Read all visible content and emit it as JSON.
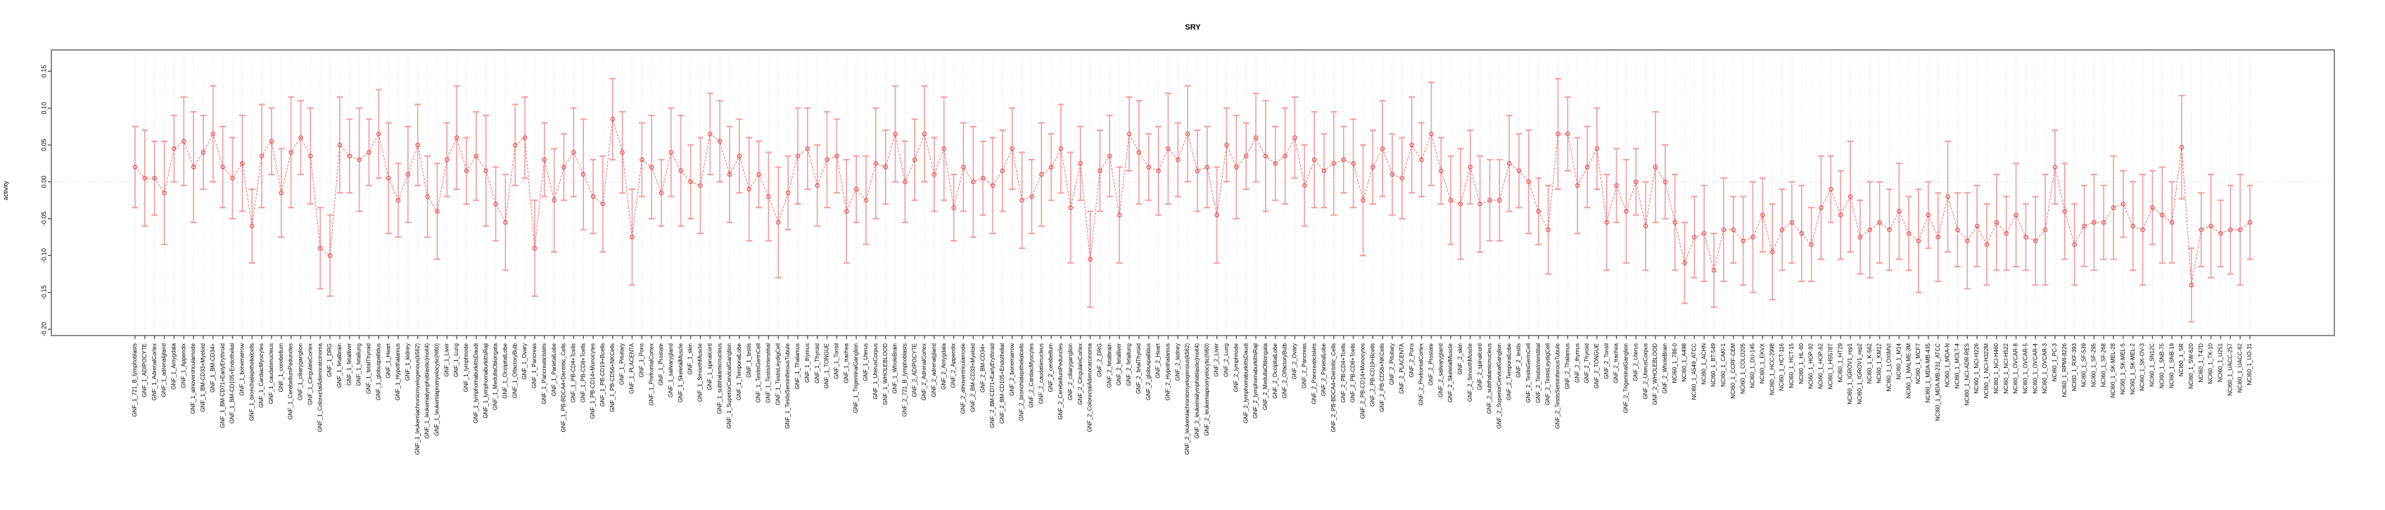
{
  "figure": {
    "title": "SRY",
    "background": "#ffffff"
  },
  "chart_data": {
    "type": "scatter",
    "title": "SRY",
    "xlabel": "",
    "ylabel": "activity",
    "ylim": [
      -0.21,
      0.18
    ],
    "yticks": [
      "0.15",
      "0.10",
      "0.05",
      "0.00",
      "-0.05",
      "-0.10",
      "-0.15",
      "-0.20"
    ],
    "grid": "vertical-dotted-per-category",
    "zero_line": true,
    "legend": "none",
    "marker": "open-circle",
    "line_style": "dashed",
    "point_color": "#e8504f",
    "line_color": "#ef6a6a",
    "errorbar_color": "#f49c9c",
    "grid_color": "#d9d9d9",
    "zero_line_color": "#e8cfcf",
    "box_color": "#8c8c8c",
    "series_groups": [
      {
        "prefix": "GNF_1_",
        "tissue_key": "gnf_tissues"
      },
      {
        "prefix": "GNF_2_",
        "tissue_key": "gnf_tissues"
      },
      {
        "prefix": "NCI60_1_",
        "tissue_key": "nci60_lines"
      }
    ],
    "gnf_tissues": [
      "721_B_lymphoblasts",
      "ADIPOCYTE",
      "AdrenalCortex",
      "adrenalgland",
      "Amygdala",
      "Appendix",
      "atrioventricularnode",
      "BM-CD33+Myeloid",
      "BM-CD34+",
      "BM-CD71+EarlyErythroid",
      "BM-CD105+Endothelial",
      "bonemarrow",
      "bronchialepithelialcells",
      "CardiacMyocytes",
      "caudatenucleus",
      "cerebellum",
      "CerebellumPeduncles",
      "ciliaryganglion",
      "CingulateCortex",
      "ColorectalAdenocarcinoma",
      "DRG",
      "fetalbrain",
      "fetalliver",
      "fetallung",
      "fetalThyroid",
      "globuspallidus",
      "Heart",
      "Hypothalamus",
      "kidney",
      "leukemiachronicmyelogenous(k562)",
      "leukemialymphoblastic(molt4)",
      "leukemiapromyelocytic(hl60)",
      "Liver",
      "Lung",
      "lymphnode",
      "lymphomaburkittsDaudi",
      "lymphomaburkittsRaji",
      "MedullaOblongata",
      "OccipitalLobe",
      "OlfactoryBulb",
      "Ovary",
      "Pancreas",
      "PancreaticIslets",
      "ParietalLobe",
      "PB-BDCA4+Dentritic_Cells",
      "PB-CD4+Tcells",
      "PB-CD8+Tcells",
      "PB-CD14+Monocytes",
      "PB-CD19+Bcells",
      "PB-CD56+NKCells",
      "Pituitary",
      "PLACENTA",
      "Pons",
      "PrefrontalCortex",
      "Prostate",
      "salivarygland",
      "SkeletalMuscle",
      "skin",
      "SmoothMuscle",
      "spinalcord",
      "subthalamicnucleus",
      "SuperiorCervicalGanglion",
      "TemporalLobe",
      "testis",
      "TestisGermCell",
      "TestisInterstitial",
      "TestisLeydigCell",
      "TestisSeminiferousTubule",
      "Thalamus",
      "thymus",
      "Thyroid",
      "TONGUE",
      "Tonsil",
      "trachea",
      "TrigeminalGanglion",
      "Uterus",
      "UterusCorpus",
      "WHOLEBLOOD",
      "WholeBrain"
    ],
    "nci60_lines": [
      "786-0",
      "A498",
      "A549_ATCC",
      "ACHN",
      "BT-549",
      "CAKI-1",
      "CCRF-CEM",
      "COLO205",
      "DU-145",
      "EKVX",
      "HCC-2998",
      "HCT-116",
      "HCT-15",
      "HL-60",
      "HOP-92",
      "HOP-62",
      "HS578T",
      "HT29",
      "IGROV1_rep1",
      "IGROV1_rep2",
      "K-562",
      "KM12",
      "LOXIMVI",
      "M14",
      "MALME-3M",
      "MCF7",
      "MDA-MB-435",
      "MDA-MB-231_ATCC",
      "MDA-N",
      "MOLT-4",
      "NCI-ADR-RES",
      "NCI-H226",
      "NCI-H322M",
      "NCI-H460",
      "NCI-H522",
      "OVCAR-8",
      "OVCAR-5",
      "OVCAR-4",
      "OVCAR-3",
      "PC-3",
      "RPMI-8226",
      "RXF-393",
      "SF-539",
      "SF-295",
      "SF-268",
      "SK-MEL-28",
      "SK-MEL-5",
      "SK-MEL-2",
      "SK-OV-3",
      "SN12C",
      "SNB-75",
      "SNB-19",
      "SR",
      "SW-620",
      "T47D",
      "TK-10",
      "U251",
      "UACC-257",
      "UACC-62",
      "UO-31"
    ],
    "values": [
      0.02,
      0.005,
      0.005,
      -0.015,
      0.045,
      0.055,
      0.02,
      0.04,
      0.065,
      0.02,
      0.005,
      0.025,
      -0.06,
      0.035,
      0.055,
      -0.015,
      0.04,
      0.06,
      0.035,
      -0.09,
      -0.1,
      0.05,
      0.035,
      0.03,
      0.04,
      0.065,
      0.005,
      -0.025,
      0.01,
      0.05,
      -0.02,
      -0.04,
      0.03,
      0.06,
      0.015,
      0.035,
      0.015,
      -0.03,
      -0.055,
      0.05,
      0.06,
      -0.09,
      0.03,
      -0.025,
      0.02,
      0.04,
      0.01,
      -0.02,
      -0.03,
      0.085,
      0.04,
      -0.075,
      0.03,
      0.02,
      -0.015,
      0.04,
      0.015,
      0.0,
      -0.005,
      0.065,
      0.055,
      0.01,
      0.035,
      -0.01,
      0.01,
      -0.02,
      -0.055,
      -0.015,
      0.035,
      0.045,
      -0.005,
      0.03,
      0.035,
      -0.04,
      -0.01,
      -0.025,
      0.025,
      0.02,
      0.065,
      0.0,
      0.03,
      0.065,
      0.01,
      0.045,
      -0.035,
      0.02,
      0.0,
      0.005,
      -0.005,
      0.015,
      0.045,
      -0.025,
      -0.02,
      0.01,
      0.02,
      0.045,
      -0.035,
      0.025,
      -0.105,
      0.015,
      0.035,
      -0.045,
      0.065,
      0.04,
      0.02,
      0.015,
      0.045,
      0.03,
      0.065,
      0.015,
      0.02,
      -0.045,
      0.05,
      0.02,
      0.035,
      0.06,
      0.035,
      0.025,
      0.035,
      0.06,
      -0.005,
      0.03,
      0.015,
      0.025,
      0.03,
      0.025,
      -0.025,
      0.02,
      0.045,
      0.01,
      0.005,
      0.05,
      0.03,
      0.065,
      0.015,
      -0.025,
      -0.03,
      0.02,
      -0.03,
      -0.025,
      -0.025,
      0.025,
      0.015,
      0.0,
      -0.04,
      -0.065,
      0.065,
      0.065,
      -0.005,
      0.02,
      0.045,
      -0.055,
      -0.005,
      -0.04,
      0.0,
      -0.06,
      0.02,
      0.0,
      -0.055,
      -0.11,
      -0.075,
      -0.07,
      -0.12,
      -0.065,
      -0.065,
      -0.08,
      -0.075,
      -0.045,
      -0.095,
      -0.065,
      -0.055,
      -0.07,
      -0.085,
      -0.035,
      -0.01,
      -0.045,
      -0.02,
      -0.075,
      -0.065,
      -0.055,
      -0.065,
      -0.04,
      -0.07,
      -0.08,
      -0.045,
      -0.075,
      -0.02,
      -0.065,
      -0.08,
      -0.06,
      -0.085,
      -0.055,
      -0.07,
      -0.045,
      -0.075,
      -0.08,
      -0.065,
      0.02,
      -0.04,
      -0.085,
      -0.06,
      -0.055,
      -0.055,
      -0.035,
      -0.03,
      -0.06,
      -0.065,
      -0.035,
      -0.045,
      -0.055,
      0.047,
      -0.14,
      -0.065,
      -0.06,
      -0.07,
      -0.065,
      -0.065,
      -0.055
    ],
    "errors": [
      0.055,
      0.065,
      0.05,
      0.07,
      0.045,
      0.06,
      0.075,
      0.05,
      0.065,
      0.055,
      0.055,
      0.065,
      0.05,
      0.07,
      0.045,
      0.06,
      0.075,
      0.05,
      0.065,
      0.055,
      0.055,
      0.065,
      0.05,
      0.07,
      0.045,
      0.06,
      0.075,
      0.05,
      0.065,
      0.055,
      0.055,
      0.065,
      0.05,
      0.07,
      0.045,
      0.06,
      0.075,
      0.05,
      0.065,
      0.055,
      0.055,
      0.065,
      0.05,
      0.07,
      0.045,
      0.06,
      0.075,
      0.05,
      0.065,
      0.055,
      0.055,
      0.065,
      0.05,
      0.07,
      0.045,
      0.06,
      0.075,
      0.05,
      0.065,
      0.055,
      0.055,
      0.065,
      0.05,
      0.07,
      0.045,
      0.06,
      0.075,
      0.05,
      0.065,
      0.055,
      0.055,
      0.065,
      0.05,
      0.07,
      0.045,
      0.06,
      0.075,
      0.05,
      0.065,
      0.055,
      0.055,
      0.065,
      0.05,
      0.07,
      0.045,
      0.06,
      0.075,
      0.05,
      0.065,
      0.055,
      0.055,
      0.065,
      0.05,
      0.07,
      0.045,
      0.06,
      0.075,
      0.05,
      0.065,
      0.055,
      0.055,
      0.065,
      0.05,
      0.07,
      0.045,
      0.06,
      0.075,
      0.05,
      0.065,
      0.055,
      0.055,
      0.065,
      0.05,
      0.07,
      0.045,
      0.06,
      0.075,
      0.05,
      0.065,
      0.055,
      0.055,
      0.065,
      0.05,
      0.07,
      0.045,
      0.06,
      0.075,
      0.05,
      0.065,
      0.055,
      0.055,
      0.065,
      0.05,
      0.07,
      0.045,
      0.06,
      0.075,
      0.05,
      0.065,
      0.055,
      0.055,
      0.065,
      0.05,
      0.07,
      0.045,
      0.06,
      0.075,
      0.05,
      0.065,
      0.055,
      0.055,
      0.065,
      0.05,
      0.07,
      0.045,
      0.06,
      0.075,
      0.05,
      0.065,
      0.055,
      0.055,
      0.065,
      0.05,
      0.07,
      0.045,
      0.06,
      0.075,
      0.05,
      0.065,
      0.055,
      0.055,
      0.065,
      0.05,
      0.07,
      0.045,
      0.06,
      0.075,
      0.05,
      0.065,
      0.055,
      0.055,
      0.065,
      0.05,
      0.07,
      0.045,
      0.06,
      0.075,
      0.05,
      0.065,
      0.055,
      0.055,
      0.065,
      0.05,
      0.07,
      0.045,
      0.06,
      0.075,
      0.05,
      0.065,
      0.055,
      0.055,
      0.065,
      0.05,
      0.07,
      0.045,
      0.06,
      0.075,
      0.05,
      0.065,
      0.055,
      0.07,
      0.05,
      0.05,
      0.07,
      0.045,
      0.06,
      0.075,
      0.05
    ]
  }
}
